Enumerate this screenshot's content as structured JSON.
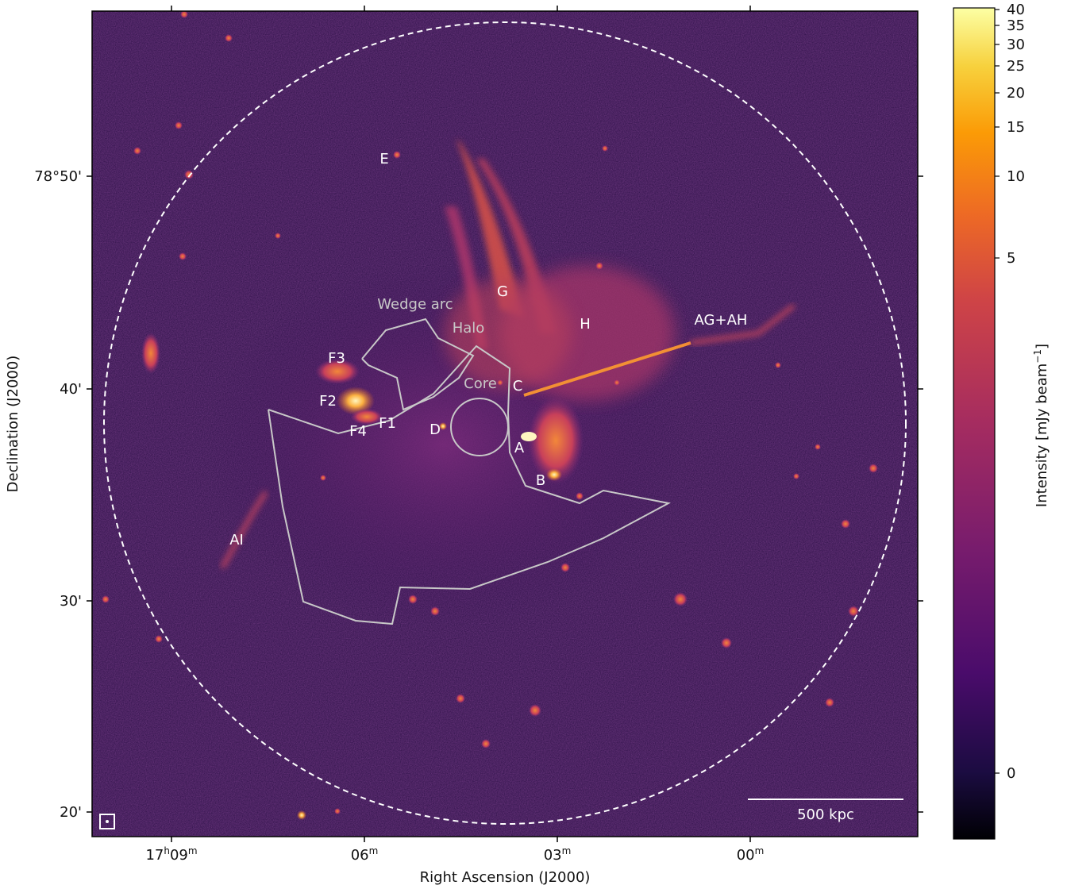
{
  "figure": {
    "x_axis_label": "Right Ascension (J2000)",
    "y_axis_label": "Declination (J2000)",
    "x_ticks": [
      {
        "main": "17",
        "h": "h",
        "mid": "09",
        "m": "m"
      },
      {
        "main": "06",
        "h": "",
        "mid": "",
        "m": "m"
      },
      {
        "main": "03",
        "h": "",
        "mid": "",
        "m": "m"
      },
      {
        "main": "00",
        "h": "",
        "mid": "",
        "m": "m"
      }
    ],
    "y_ticks": [
      "78°50'",
      "40'",
      "30'",
      "20'"
    ],
    "scale_bar": "500 kpc",
    "colorbar": {
      "label": "Intensity [mJy beam",
      "label_sup": "−1",
      "label_end": "]",
      "ticks": [
        "40",
        "35",
        "30",
        "25",
        "20",
        "15",
        "10",
        "5",
        "0"
      ],
      "colormap": "inferno"
    },
    "source_labels": {
      "E": "E",
      "G": "G",
      "H": "H",
      "AG_AH": "AG+AH",
      "F3": "F3",
      "F2": "F2",
      "F1": "F1",
      "F4": "F4",
      "D": "D",
      "C": "C",
      "A": "A",
      "B": "B",
      "AI": "AI"
    },
    "region_labels": {
      "wedge_arc": "Wedge arc",
      "halo": "Halo",
      "core": "Core"
    },
    "colors": {
      "background": "#2a0f45",
      "emission": "#e8683a",
      "bright": "#fcd36b",
      "region_outline": "#c8c8c8",
      "circle": "#ffffff"
    }
  }
}
